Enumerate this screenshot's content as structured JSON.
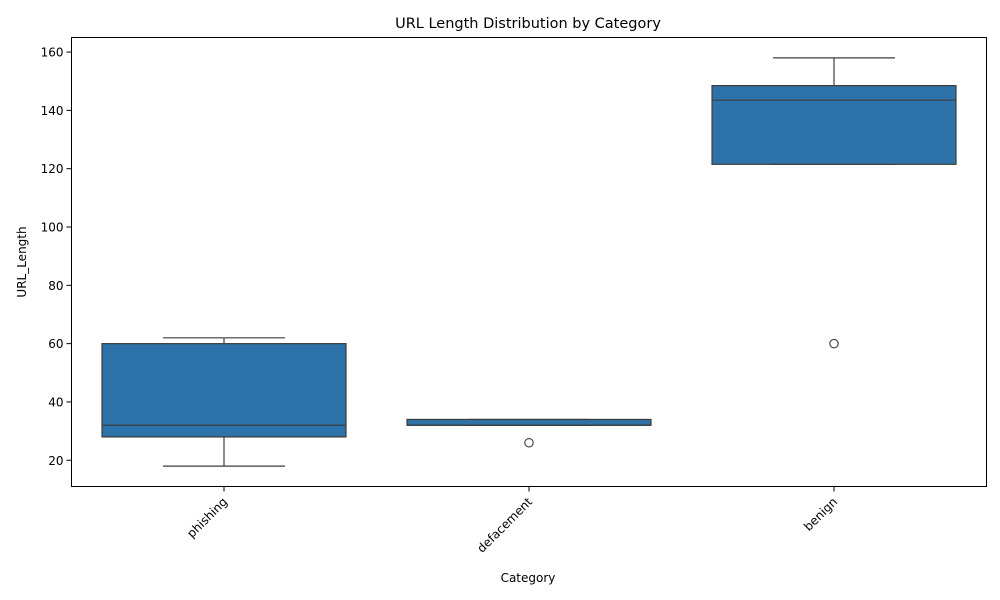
{
  "chart_data": {
    "type": "box",
    "title": "URL Length Distribution by Category",
    "xlabel": "Category",
    "ylabel": "URL_Length",
    "ylim": [
      11,
      165
    ],
    "yticks": [
      20,
      40,
      60,
      80,
      100,
      120,
      140,
      160
    ],
    "grid": false,
    "box_color": "#2d72a8",
    "line_color": "#3d3d3d",
    "categories": [
      "phishing",
      "defacement",
      "benign"
    ],
    "boxes": [
      {
        "category": "phishing",
        "whisker_low": 18,
        "q1": 28,
        "median": 32,
        "q3": 60,
        "whisker_high": 62,
        "outliers": []
      },
      {
        "category": "defacement",
        "whisker_low": 32,
        "q1": 32,
        "median": 32,
        "q3": 34,
        "whisker_high": 34,
        "outliers": [
          26
        ]
      },
      {
        "category": "benign",
        "whisker_low": 121.5,
        "q1": 121.5,
        "median": 143.5,
        "q3": 148.5,
        "whisker_high": 158,
        "outliers": [
          60
        ]
      }
    ]
  }
}
